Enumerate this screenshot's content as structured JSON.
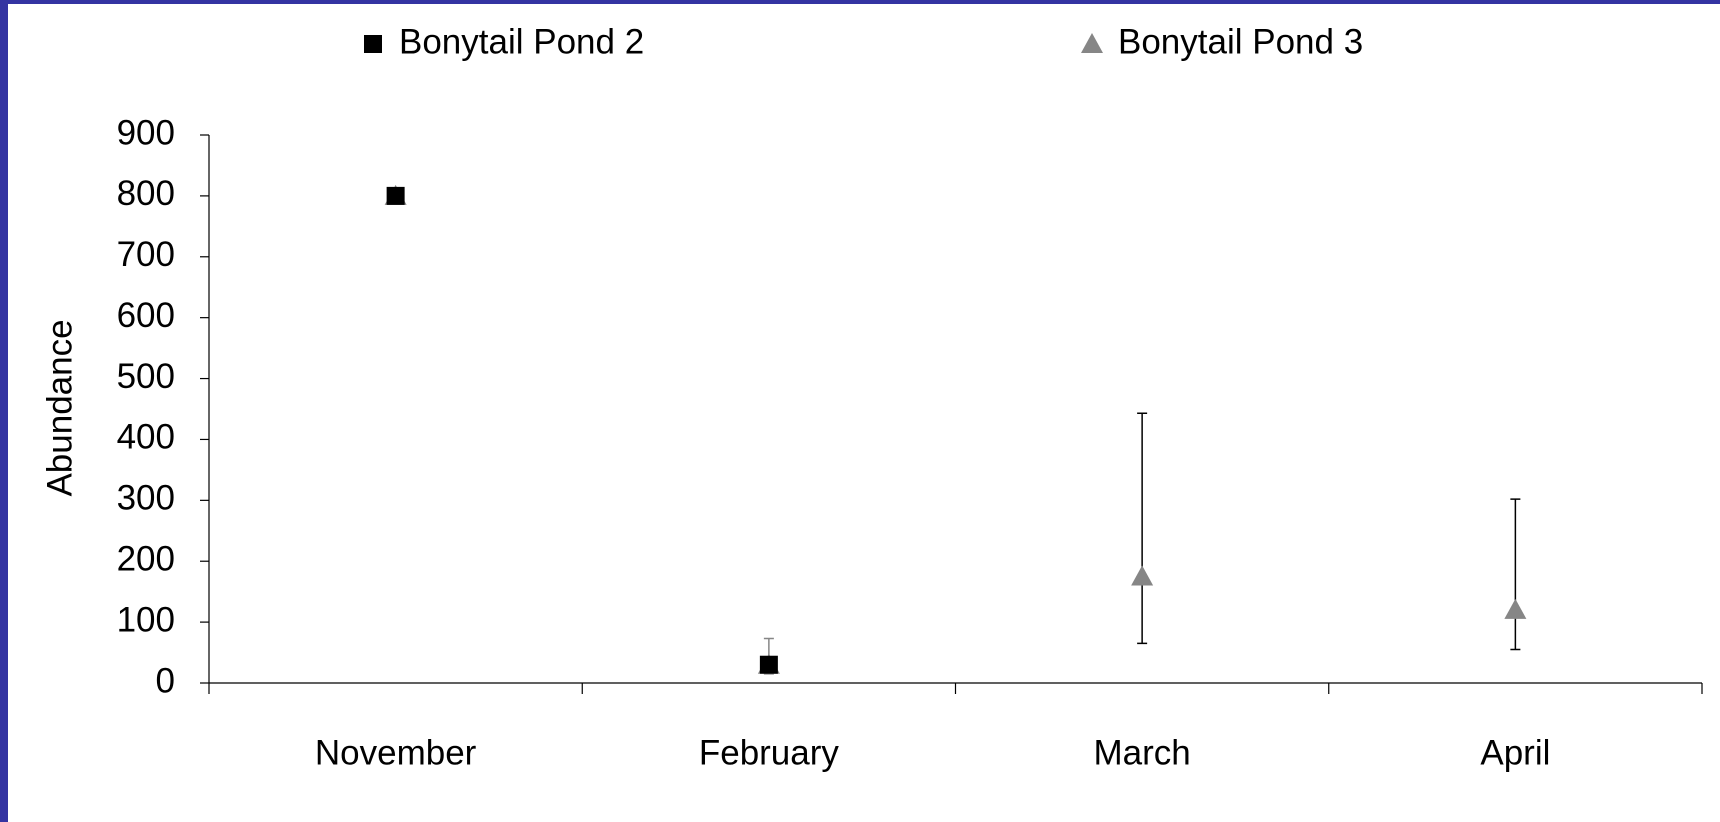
{
  "chart_data": {
    "type": "scatter",
    "y_label": "Abundance",
    "categories": [
      "November",
      "February",
      "March",
      "April"
    ],
    "series": [
      {
        "name": "Bonytail Pond 3",
        "color": "#868686",
        "marker": "triangle",
        "values": [
          800,
          30,
          175,
          120
        ],
        "errors_plus": [
          null,
          43,
          268,
          182
        ],
        "errors_minus": [
          null,
          15,
          110,
          65
        ]
      },
      {
        "name": "Bonytail Pond 2",
        "color": "#000000",
        "marker": "square",
        "values": [
          800,
          30,
          null,
          null
        ]
      }
    ],
    "ylim": [
      0,
      900
    ],
    "yticks": [
      0,
      100,
      200,
      300,
      400,
      500,
      600,
      700,
      800,
      900
    ],
    "grid": false
  }
}
